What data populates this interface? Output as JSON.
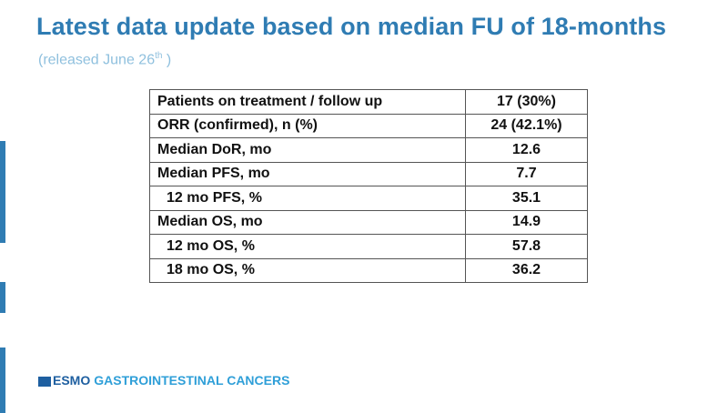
{
  "slide": {
    "title": "Latest data update based on median FU of 18-months",
    "subtitle_prefix": "(released June 26",
    "subtitle_sup": "th",
    "subtitle_suffix": " )"
  },
  "table": {
    "rows": [
      {
        "label": "Patients on treatment / follow up",
        "value": "17 (30%)"
      },
      {
        "label": "ORR (confirmed), n (%)",
        "value": "24 (42.1%)"
      },
      {
        "label": "Median DoR, mo",
        "value": "12.6"
      },
      {
        "label": "Median PFS, mo",
        "value": "7.7"
      },
      {
        "label": "12 mo PFS, %",
        "value": "35.1"
      },
      {
        "label": "Median OS, mo",
        "value": "14.9"
      },
      {
        "label": "12 mo OS, %",
        "value": "57.8"
      },
      {
        "label": "18 mo OS, %",
        "value": "36.2"
      }
    ]
  },
  "footer": {
    "logo_esmo": "ESMO",
    "logo_rest": "GASTROINTESTINAL CANCERS"
  },
  "colors": {
    "title": "#2f7cb3",
    "subtitle": "#8fc0de",
    "logo_dark": "#1e5fa0",
    "logo_light": "#2f9fd8"
  }
}
